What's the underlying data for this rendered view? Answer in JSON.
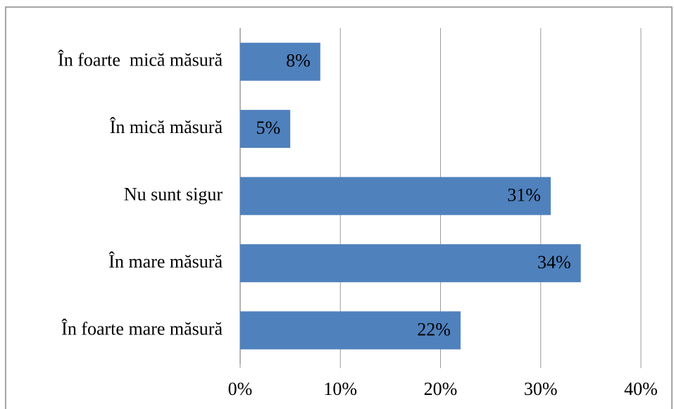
{
  "chart_data": {
    "type": "bar",
    "orientation": "horizontal",
    "categories": [
      "În foarte  mică măsură",
      "În mică măsură",
      "Nu sunt sigur",
      "În mare măsură",
      "În foarte mare măsură"
    ],
    "values": [
      8,
      5,
      31,
      34,
      22
    ],
    "value_labels": [
      "8%",
      "5%",
      "31%",
      "34%",
      "22%"
    ],
    "color": "#4f81bd",
    "xlim": [
      0,
      40
    ],
    "xticks": [
      {
        "value": 0,
        "label": "0%"
      },
      {
        "value": 10,
        "label": "10%"
      },
      {
        "value": 20,
        "label": "20%"
      },
      {
        "value": 30,
        "label": "30%"
      },
      {
        "value": 40,
        "label": "40%"
      }
    ],
    "grid": true
  }
}
